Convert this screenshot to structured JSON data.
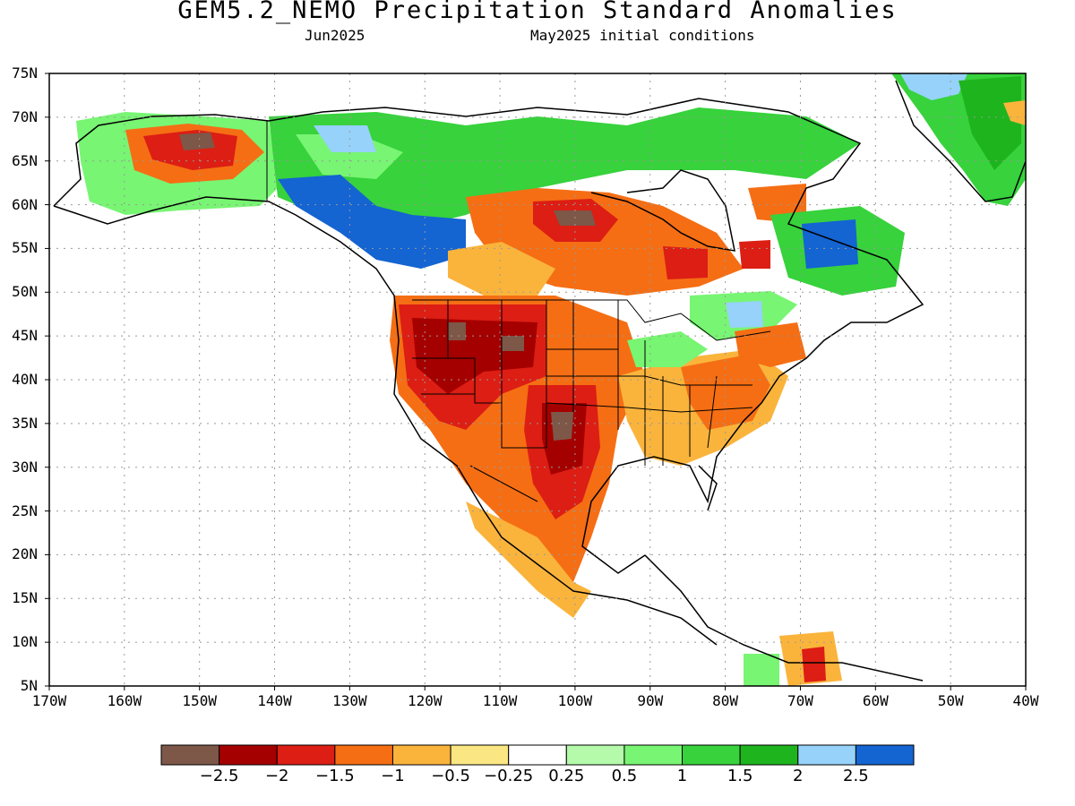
{
  "title": "GEM5.2_NEMO Precipitation Standard Anomalies",
  "subtitle_left": "Jun2025",
  "subtitle_right": "May2025 initial conditions",
  "map": {
    "lon_range": [
      -170,
      -40
    ],
    "lat_range": [
      5,
      75
    ],
    "lat_ticks": [
      "75N",
      "70N",
      "65N",
      "60N",
      "55N",
      "50N",
      "45N",
      "40N",
      "35N",
      "30N",
      "25N",
      "20N",
      "15N",
      "10N",
      "5N"
    ],
    "lon_ticks": [
      "170W",
      "160W",
      "150W",
      "140W",
      "130W",
      "120W",
      "110W",
      "100W",
      "90W",
      "80W",
      "70W",
      "60W",
      "50W",
      "40W"
    ]
  },
  "colorbar": {
    "colors": [
      "#7d5748",
      "#a50000",
      "#dc1e14",
      "#f56e14",
      "#fab43c",
      "#fae682",
      "#ffffff",
      "#b4faaa",
      "#78f573",
      "#37d23c",
      "#1eb41e",
      "#96d2fa",
      "#1464d2"
    ],
    "labels": [
      "-2.5",
      "-2",
      "-1.5",
      "-1",
      "-0.5",
      "-0.25",
      "0.25",
      "0.5",
      "1",
      "1.5",
      "2",
      "2.5"
    ]
  }
}
